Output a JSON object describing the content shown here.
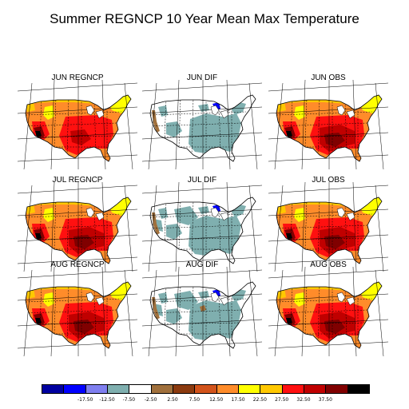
{
  "title": "Summer REGNCP 10 Year Mean Max Temperature",
  "panels": [
    {
      "label": "JUN REGNCP",
      "kind": "model",
      "month": "JUN"
    },
    {
      "label": "JUN DIF",
      "kind": "dif",
      "month": "JUN"
    },
    {
      "label": "JUN OBS",
      "kind": "obs",
      "month": "JUN"
    },
    {
      "label": "JUL REGNCP",
      "kind": "model",
      "month": "JUL"
    },
    {
      "label": "JUL DIF",
      "kind": "dif",
      "month": "JUL"
    },
    {
      "label": "JUL OBS",
      "kind": "obs",
      "month": "JUL"
    },
    {
      "label": "AUG REGNCP",
      "kind": "model",
      "month": "AUG"
    },
    {
      "label": "AUG DIF",
      "kind": "dif",
      "month": "AUG"
    },
    {
      "label": "AUG OBS",
      "kind": "obs",
      "month": "AUG"
    }
  ],
  "colorbar": {
    "colors": [
      "#0000a0",
      "#0000ff",
      "#7f7fef",
      "#7fafaf",
      "#ffffff",
      "#a0703c",
      "#8b3a0f",
      "#d2531b",
      "#ff8c2a",
      "#ffff00",
      "#ffc800",
      "#ff1010",
      "#c00000",
      "#800000",
      "#000000"
    ],
    "labels": [
      "-17.50",
      "-12.50",
      "-7.50",
      "-2.50",
      "2.50",
      "7.50",
      "12.50",
      "17.50",
      "22.50",
      "27.50",
      "32.50",
      "37.50"
    ]
  },
  "palette": {
    "yellow": "#ffff00",
    "gold": "#ffc800",
    "orange": "#ff8c2a",
    "red": "#ff1010",
    "darkred": "#c00000",
    "maroon": "#800000",
    "black": "#000000",
    "teal": "#7fafaf",
    "blue": "#0000ff",
    "brown": "#a0703c"
  }
}
